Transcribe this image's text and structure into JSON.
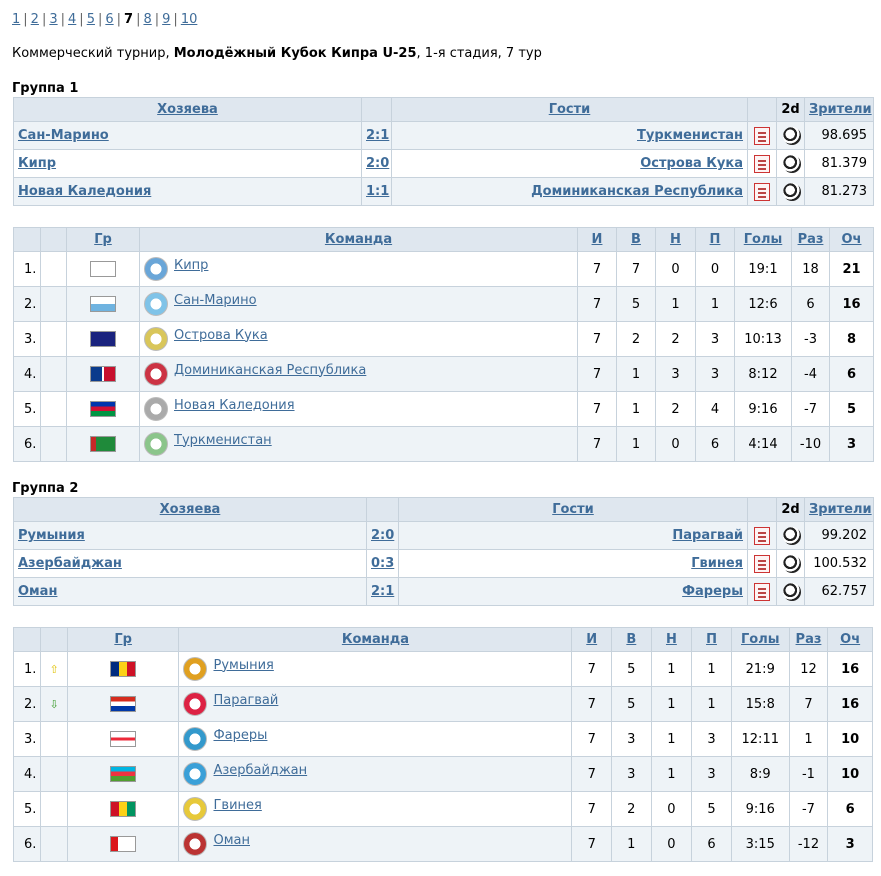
{
  "pager": {
    "pages": [
      "1",
      "2",
      "3",
      "4",
      "5",
      "6",
      "7",
      "8",
      "9",
      "10"
    ],
    "current": "7"
  },
  "description": {
    "prefix": "Коммерческий турнир, ",
    "tournament": "Молодёжный Кубок Кипра U-25",
    "suffix": ", 1-я стадия, 7 тур"
  },
  "match_headers": {
    "home": "Хозяева",
    "away": "Гости",
    "twod": "2d",
    "attendance": "Зрители"
  },
  "standings_headers": {
    "gr": "Гр",
    "team": "Команда",
    "played": "И",
    "won": "В",
    "draw": "Н",
    "lost": "П",
    "goals": "Голы",
    "diff": "Раз",
    "points": "Оч"
  },
  "groups": [
    {
      "title": "Группа 1",
      "matches": [
        {
          "home": "Сан-Марино",
          "score": "2:1",
          "away": "Туркменистан",
          "attendance": "98.695"
        },
        {
          "home": "Кипр",
          "score": "2:0",
          "away": "Острова Кука",
          "attendance": "81.379"
        },
        {
          "home": "Новая Каледония",
          "score": "1:1",
          "away": "Доминиканская Республика",
          "attendance": "81.273"
        }
      ],
      "standings": [
        {
          "pos": "1.",
          "move": "",
          "team": "Кипр",
          "p": "7",
          "w": "7",
          "d": "0",
          "l": "0",
          "goals": "19:1",
          "diff": "18",
          "pts": "21"
        },
        {
          "pos": "2.",
          "move": "",
          "team": "Сан-Марино",
          "p": "7",
          "w": "5",
          "d": "1",
          "l": "1",
          "goals": "12:6",
          "diff": "6",
          "pts": "16"
        },
        {
          "pos": "3.",
          "move": "",
          "team": "Острова Кука",
          "p": "7",
          "w": "2",
          "d": "2",
          "l": "3",
          "goals": "10:13",
          "diff": "-3",
          "pts": "8"
        },
        {
          "pos": "4.",
          "move": "",
          "team": "Доминиканская Республика",
          "p": "7",
          "w": "1",
          "d": "3",
          "l": "3",
          "goals": "8:12",
          "diff": "-4",
          "pts": "6"
        },
        {
          "pos": "5.",
          "move": "",
          "team": "Новая Каледония",
          "p": "7",
          "w": "1",
          "d": "2",
          "l": "4",
          "goals": "9:16",
          "diff": "-7",
          "pts": "5"
        },
        {
          "pos": "6.",
          "move": "",
          "team": "Туркменистан",
          "p": "7",
          "w": "1",
          "d": "0",
          "l": "6",
          "goals": "4:14",
          "diff": "-10",
          "pts": "3"
        }
      ]
    },
    {
      "title": "Группа 2",
      "matches": [
        {
          "home": "Румыния",
          "score": "2:0",
          "away": "Парагвай",
          "attendance": "99.202"
        },
        {
          "home": "Азербайджан",
          "score": "0:3",
          "away": "Гвинея",
          "attendance": "100.532"
        },
        {
          "home": "Оман",
          "score": "2:1",
          "away": "Фареры",
          "attendance": "62.757"
        }
      ],
      "standings": [
        {
          "pos": "1.",
          "move": "up",
          "team": "Румыния",
          "p": "7",
          "w": "5",
          "d": "1",
          "l": "1",
          "goals": "21:9",
          "diff": "12",
          "pts": "16"
        },
        {
          "pos": "2.",
          "move": "down",
          "team": "Парагвай",
          "p": "7",
          "w": "5",
          "d": "1",
          "l": "1",
          "goals": "15:8",
          "diff": "7",
          "pts": "16"
        },
        {
          "pos": "3.",
          "move": "",
          "team": "Фареры",
          "p": "7",
          "w": "3",
          "d": "1",
          "l": "3",
          "goals": "12:11",
          "diff": "1",
          "pts": "10"
        },
        {
          "pos": "4.",
          "move": "",
          "team": "Азербайджан",
          "p": "7",
          "w": "3",
          "d": "1",
          "l": "3",
          "goals": "8:9",
          "diff": "-1",
          "pts": "10"
        },
        {
          "pos": "5.",
          "move": "",
          "team": "Гвинея",
          "p": "7",
          "w": "2",
          "d": "0",
          "l": "5",
          "goals": "9:16",
          "diff": "-7",
          "pts": "6"
        },
        {
          "pos": "6.",
          "move": "",
          "team": "Оман",
          "p": "7",
          "w": "1",
          "d": "0",
          "l": "6",
          "goals": "3:15",
          "diff": "-12",
          "pts": "3"
        }
      ]
    }
  ],
  "colors": {
    "link": "#3f6c99",
    "header_bg": "#dfe7ef",
    "row_alt": "#eef3f7",
    "border": "#c7d2dc",
    "up_arrow": "#e0c000",
    "down_arrow": "#3a9a2a"
  }
}
